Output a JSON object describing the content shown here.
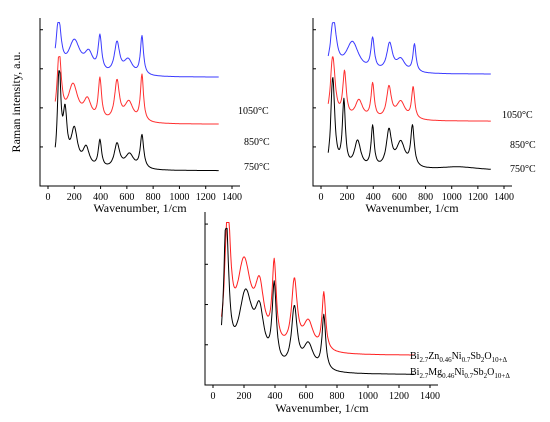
{
  "chart_data": [
    {
      "type": "line",
      "xlabel": "Wavenumber, 1/cm",
      "ylabel": "Raman intensity, a.u.",
      "xlim": [
        0,
        1400
      ],
      "x_ticks": [
        "0",
        "200",
        "400",
        "600",
        "800",
        "1000",
        "1200",
        "1400"
      ],
      "grid": false,
      "series": [
        {
          "name": "1050°C",
          "color": "#3b3bff",
          "offset": 0.64,
          "scale": 0.34,
          "peaks": [
            [
              80,
              1.0,
              24
            ],
            [
              200,
              0.62,
              55
            ],
            [
              310,
              0.35,
              40
            ],
            [
              395,
              0.66,
              16
            ],
            [
              525,
              0.58,
              24
            ],
            [
              610,
              0.28,
              40
            ],
            [
              715,
              0.72,
              14
            ]
          ]
        },
        {
          "name": "850°C",
          "color": "#ff3030",
          "offset": 0.34,
          "scale": 0.42,
          "peaks": [
            [
              85,
              1.0,
              20
            ],
            [
              190,
              0.55,
              45
            ],
            [
              300,
              0.3,
              35
            ],
            [
              395,
              0.62,
              15
            ],
            [
              525,
              0.6,
              22
            ],
            [
              615,
              0.3,
              40
            ],
            [
              715,
              0.7,
              14
            ]
          ]
        },
        {
          "name": "750°C",
          "color": "#000000",
          "offset": 0.04,
          "scale": 0.62,
          "peaks": [
            [
              85,
              1.0,
              16
            ],
            [
              130,
              0.5,
              18
            ],
            [
              200,
              0.38,
              30
            ],
            [
              290,
              0.2,
              30
            ],
            [
              395,
              0.28,
              15
            ],
            [
              525,
              0.25,
              25
            ],
            [
              620,
              0.15,
              40
            ],
            [
              715,
              0.34,
              16
            ]
          ]
        }
      ]
    },
    {
      "type": "line",
      "xlabel": "Wavenumber, 1/cm",
      "ylabel": "",
      "xlim": [
        0,
        1400
      ],
      "x_ticks": [
        "0",
        "200",
        "400",
        "600",
        "800",
        "1000",
        "1200",
        "1400"
      ],
      "grid": false,
      "series": [
        {
          "name": "1050°C",
          "color": "#3b3bff",
          "offset": 0.66,
          "scale": 0.32,
          "peaks": [
            [
              95,
              1.0,
              28
            ],
            [
              240,
              0.6,
              60
            ],
            [
              395,
              0.62,
              16
            ],
            [
              525,
              0.55,
              26
            ],
            [
              610,
              0.25,
              40
            ],
            [
              715,
              0.55,
              14
            ]
          ]
        },
        {
          "name": "850°C",
          "color": "#ff3030",
          "offset": 0.36,
          "scale": 0.4,
          "peaks": [
            [
              90,
              1.0,
              22
            ],
            [
              180,
              0.72,
              16
            ],
            [
              290,
              0.3,
              35
            ],
            [
              395,
              0.55,
              15
            ],
            [
              520,
              0.5,
              22
            ],
            [
              610,
              0.28,
              40
            ],
            [
              705,
              0.5,
              14
            ]
          ]
        },
        {
          "name": "750°C",
          "color": "#000000",
          "offset": 0.04,
          "scale": 0.58,
          "peaks": [
            [
              90,
              1.0,
              18
            ],
            [
              175,
              0.72,
              14
            ],
            [
              280,
              0.3,
              30
            ],
            [
              395,
              0.45,
              14
            ],
            [
              520,
              0.4,
              24
            ],
            [
              610,
              0.28,
              40
            ],
            [
              700,
              0.44,
              16
            ],
            [
              1050,
              0.04,
              200
            ]
          ]
        }
      ]
    },
    {
      "type": "line",
      "xlabel": "Wavenumber, 1/cm",
      "ylabel": "",
      "xlim": [
        0,
        1400
      ],
      "x_ticks": [
        "0",
        "200",
        "400",
        "600",
        "800",
        "1000",
        "1200",
        "1400"
      ],
      "grid": false,
      "series": [
        {
          "name": "Bi2.7Zn0.46Ni0.7Sb2O10+Δ",
          "color": "#ff2020",
          "offset": 0.12,
          "scale": 0.8,
          "peaks": [
            [
              95,
              1.0,
              22
            ],
            [
              200,
              0.66,
              55
            ],
            [
              300,
              0.42,
              35
            ],
            [
              395,
              0.62,
              16
            ],
            [
              525,
              0.52,
              22
            ],
            [
              615,
              0.22,
              40
            ],
            [
              715,
              0.44,
              14
            ]
          ]
        },
        {
          "name": "Bi2.7Mg0.46Ni0.7Sb2O10+Δ",
          "color": "#000000",
          "offset": 0.0,
          "scale": 0.88,
          "peaks": [
            [
              85,
              1.0,
              20
            ],
            [
              210,
              0.52,
              55
            ],
            [
              300,
              0.34,
              35
            ],
            [
              395,
              0.55,
              16
            ],
            [
              525,
              0.42,
              22
            ],
            [
              615,
              0.18,
              40
            ],
            [
              715,
              0.38,
              14
            ]
          ]
        }
      ]
    }
  ],
  "panels": [
    {
      "xlabel": "Wavenumber, 1/cm",
      "ylabel": "Raman intensity, a.u.",
      "x_ticks": [
        "0",
        "200",
        "400",
        "600",
        "800",
        "1000",
        "1200",
        "1400"
      ],
      "labels": [
        "1050°C",
        "850°C",
        "750°C"
      ]
    },
    {
      "xlabel": "Wavenumber, 1/cm",
      "x_ticks": [
        "0",
        "200",
        "400",
        "600",
        "800",
        "1000",
        "1200",
        "1400"
      ],
      "labels": [
        "1050°C",
        "850°C",
        "750°C"
      ]
    },
    {
      "xlabel": "Wavenumber, 1/cm",
      "x_ticks": [
        "0",
        "200",
        "400",
        "600",
        "800",
        "1000",
        "1200",
        "1400"
      ],
      "legend": [
        {
          "base": "Bi",
          "s1": "2.7",
          "el1": "Zn",
          "s2": "0.46",
          "el2": "Ni",
          "s3": "0.7",
          "el3": "Sb",
          "s4": "2",
          "el4": "O",
          "s5": "10+Δ"
        },
        {
          "base": "Bi",
          "s1": "2.7",
          "el1": "Mg",
          "s2": "0.46",
          "el2": "Ni",
          "s3": "0.7",
          "el3": "Sb",
          "s4": "2",
          "el4": "O",
          "s5": "10+Δ"
        }
      ]
    }
  ]
}
